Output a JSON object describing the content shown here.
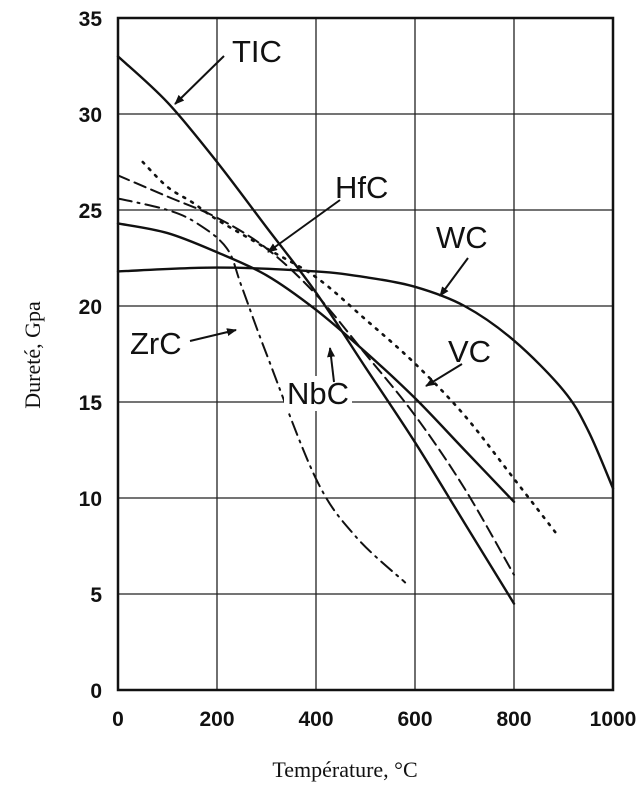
{
  "chart_data": {
    "type": "line",
    "title": "",
    "xlabel": "Température, °C",
    "ylabel": "Dureté, Gpa",
    "xlim": [
      0,
      1000
    ],
    "ylim": [
      0,
      35
    ],
    "x_ticks": [
      0,
      200,
      400,
      600,
      800,
      1000
    ],
    "y_ticks": [
      0,
      5,
      10,
      15,
      20,
      25,
      30,
      35
    ],
    "x_tick_labels": [
      "0",
      "200",
      "400",
      "600",
      "800",
      "1000"
    ],
    "y_tick_labels": [
      "0",
      "5",
      "10",
      "15",
      "20",
      "25",
      "30",
      "35"
    ],
    "grid": true,
    "series": [
      {
        "name": "TIC",
        "style": "solid",
        "x": [
          0,
          100,
          200,
          300,
          400,
          500,
          600,
          700,
          800
        ],
        "y": [
          33,
          30.6,
          27.5,
          24.1,
          20.7,
          16.8,
          12.9,
          8.7,
          4.5
        ]
      },
      {
        "name": "WC",
        "style": "solid",
        "x": [
          0,
          200,
          400,
          500,
          600,
          700,
          800,
          900,
          950,
          1000
        ],
        "y": [
          21.8,
          22,
          21.8,
          21.5,
          21,
          20,
          18.2,
          15.6,
          13.5,
          10.5
        ]
      },
      {
        "name": "NbC",
        "style": "solid",
        "x": [
          0,
          100,
          200,
          300,
          400,
          500,
          600,
          700,
          800
        ],
        "y": [
          24.3,
          23.8,
          22.8,
          21.6,
          19.8,
          17.6,
          15.2,
          12.5,
          9.8
        ]
      },
      {
        "name": "HfC",
        "style": "dashed",
        "x": [
          0,
          100,
          200,
          300,
          400,
          500,
          600,
          700,
          800
        ],
        "y": [
          26.8,
          25.7,
          24.6,
          23,
          20.6,
          17.5,
          14.3,
          10.5,
          6
        ]
      },
      {
        "name": "VC",
        "style": "dotted",
        "x": [
          50,
          100,
          150,
          200,
          300,
          400,
          500,
          600,
          700,
          800,
          890
        ],
        "y": [
          27.5,
          26.2,
          25.4,
          24.5,
          23,
          21.5,
          19.3,
          17,
          14.3,
          11,
          8
        ]
      },
      {
        "name": "ZrC",
        "style": "dashdot",
        "x": [
          0,
          100,
          160,
          220,
          250,
          300,
          400,
          480,
          580
        ],
        "y": [
          25.6,
          25,
          24.3,
          23,
          21,
          17.5,
          11,
          8,
          5.6
        ]
      }
    ],
    "annotations": [
      {
        "text": "TIC",
        "points_to": "TIC"
      },
      {
        "text": "HfC",
        "points_to": "HfC"
      },
      {
        "text": "WC",
        "points_to": "WC"
      },
      {
        "text": "ZrC",
        "points_to": "ZrC"
      },
      {
        "text": "VC",
        "points_to": "VC"
      },
      {
        "text": "NbC",
        "points_to": "NbC"
      }
    ]
  }
}
